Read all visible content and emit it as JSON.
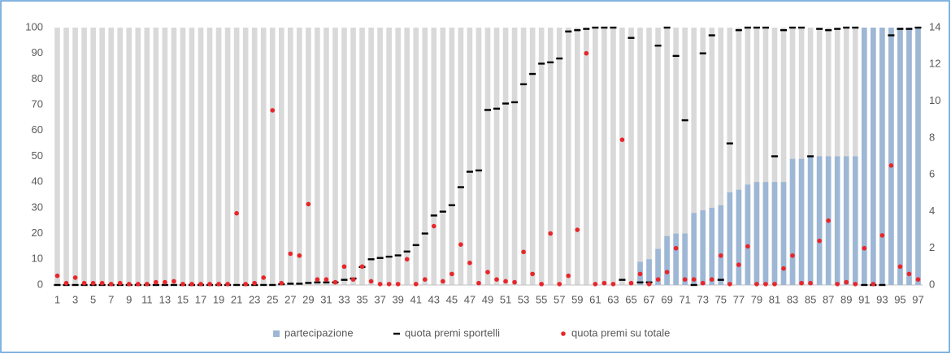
{
  "chart_data": {
    "type": "combo",
    "categories": [
      "1",
      null,
      "3",
      null,
      "5",
      null,
      "7",
      null,
      "9",
      null,
      "11",
      null,
      "13",
      null,
      "15",
      null,
      "17",
      null,
      "19",
      null,
      "21",
      null,
      "23",
      null,
      "25",
      null,
      "27",
      null,
      "29",
      null,
      "31",
      null,
      "33",
      null,
      "35",
      null,
      "37",
      null,
      "39",
      null,
      "41",
      null,
      "43",
      null,
      "45",
      null,
      "47",
      null,
      "49",
      null,
      "51",
      null,
      "53",
      null,
      "55",
      null,
      "57",
      null,
      "59",
      null,
      "61",
      null,
      "63",
      null,
      "65",
      null,
      "67",
      null,
      "69",
      null,
      "71",
      null,
      "73",
      null,
      "75",
      null,
      "77",
      null,
      "79",
      null,
      "81",
      null,
      "83",
      null,
      "85",
      null,
      "87",
      null,
      "89",
      null,
      "91",
      null,
      "93",
      null,
      "95",
      null,
      "97"
    ],
    "series": [
      {
        "name": "partecipazione",
        "type": "bar",
        "color": "#9db7d5",
        "values": [
          0,
          0,
          0,
          0,
          0,
          0,
          0,
          0,
          0,
          0,
          0,
          0,
          0,
          0,
          0,
          0,
          0,
          0,
          0,
          0,
          0,
          0,
          0,
          0,
          0,
          0,
          0,
          0,
          0,
          0,
          0,
          0,
          0,
          0,
          0,
          0,
          0,
          0,
          0,
          0,
          0,
          0,
          0,
          0,
          0,
          0,
          0,
          0,
          0,
          0,
          0,
          0,
          0,
          0,
          0,
          0,
          0,
          0,
          0,
          0,
          0,
          0,
          0,
          0,
          0,
          9,
          10,
          14,
          19,
          20,
          20,
          28,
          29,
          30,
          31,
          36,
          37,
          39,
          40,
          40,
          40,
          40,
          49,
          49,
          50,
          50,
          50,
          50,
          50,
          50,
          100,
          100,
          100,
          100,
          100,
          100,
          100
        ]
      },
      {
        "name": "quota premi sportelli",
        "type": "dash",
        "color": "#000000",
        "values": [
          0,
          0,
          0,
          0,
          0,
          0,
          0,
          0,
          0,
          0,
          0,
          0,
          0,
          0,
          0,
          0,
          0,
          0,
          0,
          0,
          0,
          0,
          0,
          0,
          0,
          0.3,
          0.5,
          0.5,
          0.8,
          1,
          1,
          1,
          2,
          2.5,
          7,
          10,
          10.5,
          11,
          11.5,
          13,
          15.5,
          20,
          27,
          28.5,
          31,
          38,
          44,
          44.5,
          68,
          68.5,
          70.5,
          71,
          78,
          82,
          86,
          86.5,
          88,
          98.5,
          99,
          99.5,
          100,
          100,
          100,
          2,
          96,
          1,
          1,
          93,
          100,
          89,
          64,
          0,
          90,
          97,
          2,
          55,
          99,
          100,
          100,
          100,
          50,
          99,
          100,
          100,
          50,
          99.5,
          99,
          99.5,
          100,
          100,
          0,
          0,
          0,
          97,
          99.5,
          99.5,
          100
        ]
      },
      {
        "name": "quota premi su totale",
        "type": "dot",
        "axis": "y2",
        "color": "#e8262a",
        "values": [
          0.5,
          0.1,
          0.4,
          0.1,
          0.1,
          0.1,
          0.05,
          0.1,
          0.05,
          0.05,
          0.05,
          0.15,
          0.15,
          0.2,
          0.05,
          0.05,
          0.05,
          0.05,
          0.05,
          0.05,
          3.9,
          0.05,
          0.1,
          0.4,
          9.5,
          0.1,
          1.7,
          1.6,
          4.4,
          0.3,
          0.3,
          0.15,
          1.0,
          0.3,
          1.0,
          0.2,
          0.05,
          0.05,
          0.05,
          1.4,
          0.05,
          0.3,
          3.2,
          0.2,
          0.6,
          2.2,
          1.2,
          0.1,
          0.7,
          0.3,
          0.2,
          0.15,
          1.8,
          0.6,
          0.05,
          2.8,
          0.05,
          0.5,
          3.0,
          12.6,
          0.05,
          0.1,
          0.05,
          7.9,
          0.1,
          0.6,
          0.05,
          0.3,
          0.7,
          2.0,
          0.3,
          0.3,
          0.1,
          0.3,
          1.6,
          0.05,
          1.1,
          2.1,
          0.05,
          0.05,
          0.05,
          0.9,
          1.6,
          0.1,
          0.1,
          2.4,
          3.5,
          0.05,
          0.15,
          0.05,
          2.0,
          0.05,
          2.7,
          6.5,
          1.0,
          0.6,
          0.3
        ]
      }
    ],
    "ylim": [
      0,
      100
    ],
    "yticks": [
      0,
      10,
      20,
      30,
      40,
      50,
      60,
      70,
      80,
      90,
      100
    ],
    "y2lim": [
      0,
      14
    ],
    "y2ticks": [
      0,
      2,
      4,
      6,
      8,
      10,
      12,
      14
    ],
    "legend": "bottom"
  }
}
